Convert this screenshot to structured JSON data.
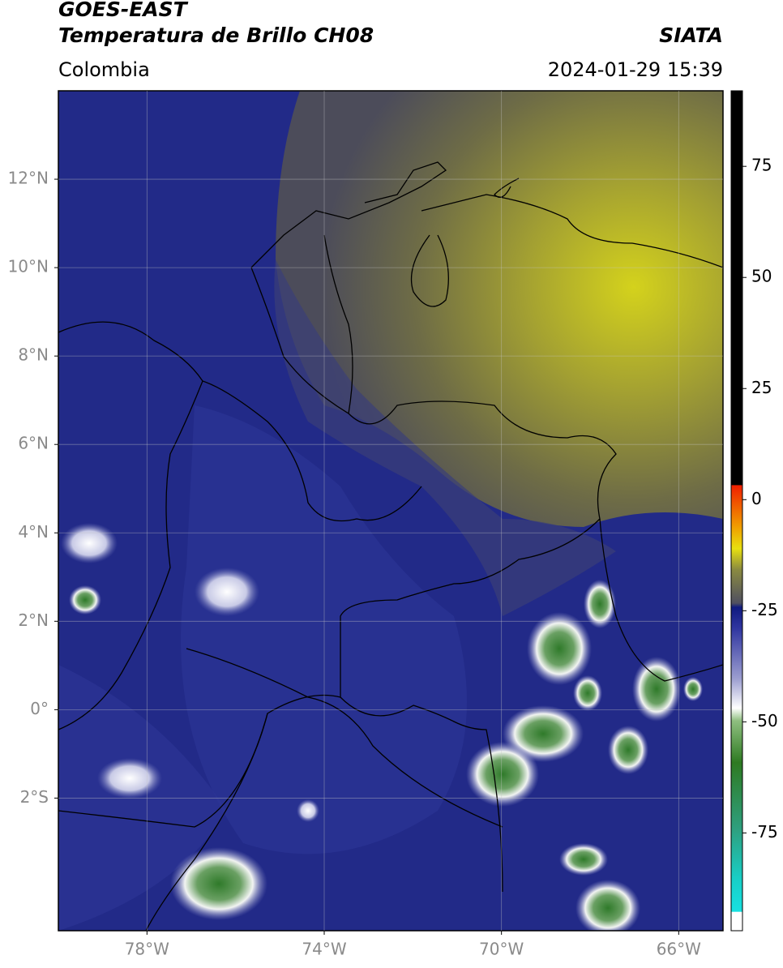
{
  "header": {
    "title": "GOES-EAST",
    "subtitle": "Temperatura de Brillo CH08",
    "source": "SIATA",
    "region": "Colombia",
    "datetime": "2024-01-29 15:39"
  },
  "map": {
    "xlim": [
      -80,
      -65
    ],
    "ylim": [
      -5,
      14
    ],
    "xticks": [
      {
        "value": -78,
        "label": "78°W"
      },
      {
        "value": -74,
        "label": "74°W"
      },
      {
        "value": -70,
        "label": "70°W"
      },
      {
        "value": -66,
        "label": "66°W"
      }
    ],
    "yticks": [
      {
        "value": 12,
        "label": "12°N"
      },
      {
        "value": 10,
        "label": "10°N"
      },
      {
        "value": 8,
        "label": "8°N"
      },
      {
        "value": 6,
        "label": "6°N"
      },
      {
        "value": 4,
        "label": "4°N"
      },
      {
        "value": 2,
        "label": "2°N"
      },
      {
        "value": 0,
        "label": "0°"
      },
      {
        "value": -2,
        "label": "2°S"
      }
    ],
    "grid": true
  },
  "colorbar": {
    "lim": [
      -97,
      92
    ],
    "ticks": [
      75,
      50,
      25,
      0,
      -25,
      -50,
      -75
    ]
  }
}
